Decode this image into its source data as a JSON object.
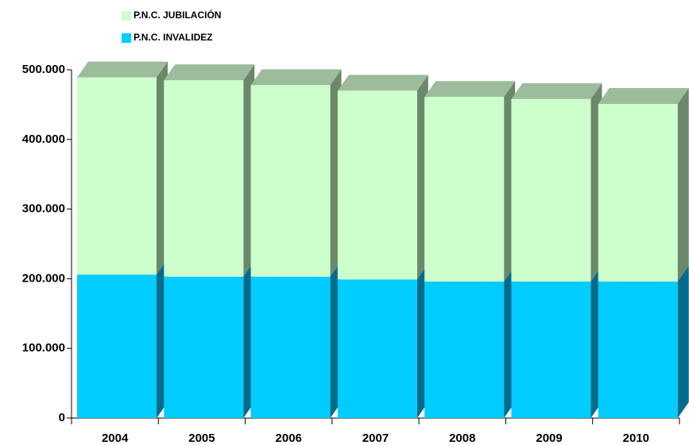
{
  "chart_data": {
    "type": "bar",
    "categories": [
      "2004",
      "2005",
      "2006",
      "2007",
      "2008",
      "2009",
      "2010"
    ],
    "series": [
      {
        "name": "P.N.C. JUBILACIÓN",
        "color": "#ccffcc",
        "values": [
          283000,
          282000,
          275000,
          271000,
          265000,
          262000,
          255000
        ]
      },
      {
        "name": "P.N.C. INVALIDEZ",
        "color": "#00ccff",
        "values": [
          206000,
          203000,
          203000,
          199000,
          196000,
          196000,
          196000
        ]
      }
    ],
    "stacked": true,
    "ylim": [
      0,
      500000
    ],
    "yticks": [
      {
        "value": 0,
        "label": "0"
      },
      {
        "value": 100000,
        "label": "100.000"
      },
      {
        "value": 200000,
        "label": "200.000"
      },
      {
        "value": 300000,
        "label": "300.000"
      },
      {
        "value": 400000,
        "label": "400.000"
      },
      {
        "value": 500000,
        "label": "500.000"
      }
    ]
  }
}
